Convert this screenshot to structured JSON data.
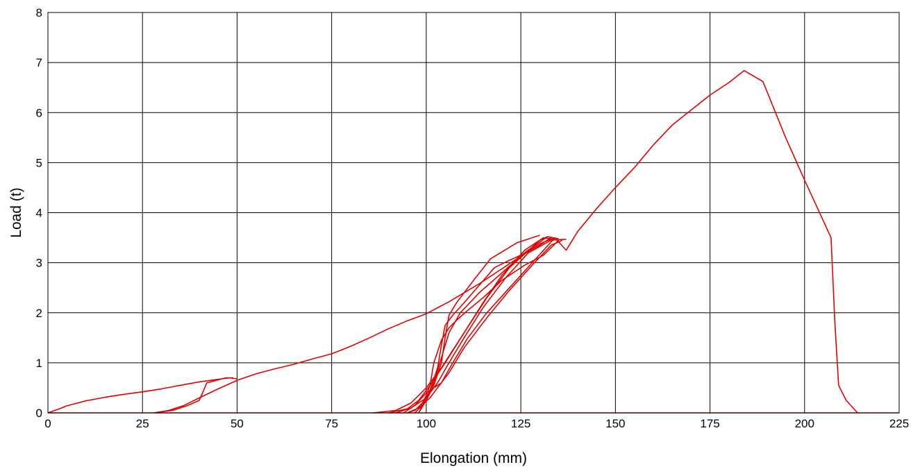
{
  "chart_data": {
    "type": "line",
    "xlabel": "Elongation (mm)",
    "ylabel": "Load (t)",
    "xlim": [
      0,
      225
    ],
    "ylim": [
      0,
      8
    ],
    "xticks": [
      "0",
      "25",
      "50",
      "75",
      "100",
      "125",
      "150",
      "175",
      "200",
      "225"
    ],
    "yticks": [
      "0",
      "1",
      "2",
      "3",
      "4",
      "5",
      "6",
      "7",
      "8"
    ],
    "grid": true,
    "legend": "none",
    "line_color": "#e00000",
    "series": [
      {
        "x": [
          0,
          3,
          5,
          10,
          15,
          20,
          25,
          30,
          35,
          40,
          45,
          48,
          50
        ],
        "y": [
          0,
          0.08,
          0.14,
          0.24,
          0.31,
          0.37,
          0.42,
          0.48,
          0.55,
          0.62,
          0.67,
          0.7,
          0.68
        ]
      },
      {
        "x": [
          28,
          33,
          37,
          40,
          42,
          44,
          47,
          49
        ],
        "y": [
          0,
          0.05,
          0.15,
          0.25,
          0.6,
          0.64,
          0.7,
          0.7
        ]
      },
      {
        "x": [
          28,
          32,
          36,
          40,
          45,
          50,
          55,
          60,
          65,
          70,
          75,
          80,
          85,
          90,
          95,
          100,
          103,
          106,
          110,
          114,
          118,
          122,
          126,
          130,
          134
        ],
        "y": [
          0,
          0.05,
          0.15,
          0.3,
          0.48,
          0.65,
          0.78,
          0.88,
          0.97,
          1.08,
          1.18,
          1.33,
          1.5,
          1.68,
          1.84,
          1.98,
          2.1,
          2.22,
          2.4,
          2.58,
          2.78,
          2.98,
          3.18,
          3.38,
          3.5
        ]
      },
      {
        "x": [
          134,
          137,
          140,
          145,
          150,
          155,
          160,
          165,
          170,
          175,
          180,
          184,
          189,
          195,
          200,
          207,
          208,
          209,
          211,
          214
        ],
        "y": [
          3.5,
          3.25,
          3.62,
          4.08,
          4.5,
          4.9,
          5.35,
          5.75,
          6.05,
          6.35,
          6.6,
          6.84,
          6.62,
          5.5,
          4.65,
          3.5,
          1.8,
          0.55,
          0.25,
          0
        ]
      },
      {
        "x": [
          86,
          92,
          96,
          100,
          104,
          110,
          116,
          122,
          130,
          132,
          135
        ],
        "y": [
          0,
          0.05,
          0.2,
          0.5,
          0.9,
          1.6,
          2.3,
          2.9,
          3.45,
          3.52,
          3.48
        ]
      },
      {
        "x": [
          90,
          95,
          98,
          101,
          105,
          110,
          115,
          120,
          126,
          131,
          135
        ],
        "y": [
          0,
          0.08,
          0.25,
          0.55,
          1.0,
          1.6,
          2.2,
          2.75,
          3.25,
          3.5,
          3.45
        ]
      },
      {
        "x": [
          92,
          96,
          100,
          103,
          106,
          110,
          115,
          121,
          127,
          133,
          137
        ],
        "y": [
          0,
          0.1,
          0.3,
          0.6,
          1.0,
          1.5,
          2.1,
          2.7,
          3.2,
          3.45,
          3.47
        ]
      },
      {
        "x": [
          94,
          97,
          100,
          104,
          107,
          111,
          116,
          122,
          128,
          134
        ],
        "y": [
          0,
          0.15,
          0.4,
          0.6,
          1.0,
          1.5,
          2.0,
          2.5,
          3.0,
          3.5
        ]
      },
      {
        "x": [
          95,
          98,
          101,
          103,
          106,
          110,
          116,
          122,
          128,
          133,
          136
        ],
        "y": [
          0,
          0.1,
          0.3,
          0.5,
          0.8,
          1.3,
          1.9,
          2.45,
          2.95,
          3.35,
          3.45
        ]
      },
      {
        "x": [
          135,
          131,
          126,
          120,
          115,
          111,
          108,
          106,
          104,
          102,
          101,
          100,
          99,
          97,
          95
        ],
        "y": [
          3.45,
          3.15,
          2.95,
          2.65,
          2.3,
          2.05,
          1.85,
          1.7,
          1.45,
          1.0,
          0.55,
          0.35,
          0.2,
          0.05,
          0
        ]
      },
      {
        "x": [
          133,
          128,
          122,
          118,
          114,
          110,
          107,
          105,
          104,
          103,
          101,
          99,
          97
        ],
        "y": [
          3.5,
          3.25,
          3.05,
          2.9,
          2.55,
          2.2,
          1.95,
          1.75,
          1.35,
          0.9,
          0.45,
          0.15,
          0
        ]
      },
      {
        "x": [
          130,
          124,
          117,
          112,
          108,
          106,
          105,
          104,
          102,
          100,
          98
        ],
        "y": [
          3.55,
          3.4,
          3.08,
          2.6,
          2.2,
          1.95,
          1.5,
          1.0,
          0.55,
          0.25,
          0
        ]
      },
      {
        "x": [
          132,
          126,
          120,
          114,
          109,
          106,
          104,
          102,
          100,
          98
        ],
        "y": [
          3.52,
          3.2,
          2.8,
          2.4,
          2.0,
          1.6,
          1.1,
          0.6,
          0.3,
          0
        ]
      },
      {
        "x": [
          0,
          225
        ],
        "y": [
          0,
          0
        ]
      }
    ]
  }
}
